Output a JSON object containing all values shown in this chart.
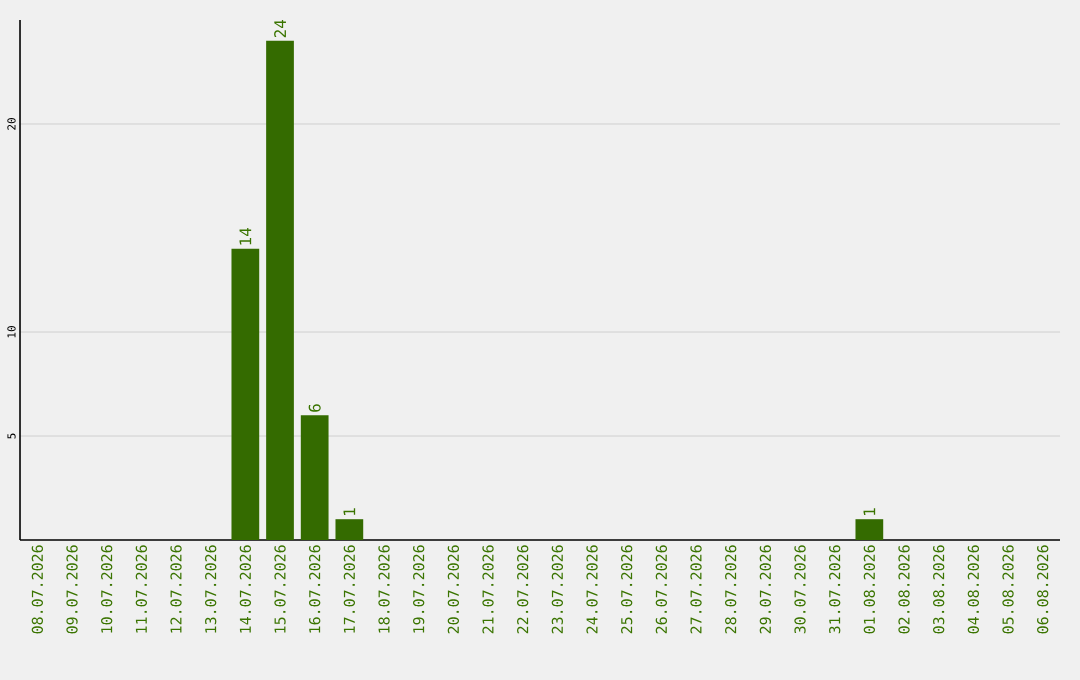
{
  "chart_data": {
    "type": "bar",
    "categories": [
      "08.07.2026",
      "09.07.2026",
      "10.07.2026",
      "11.07.2026",
      "12.07.2026",
      "13.07.2026",
      "14.07.2026",
      "15.07.2026",
      "16.07.2026",
      "17.07.2026",
      "18.07.2026",
      "19.07.2026",
      "20.07.2026",
      "21.07.2026",
      "22.07.2026",
      "23.07.2026",
      "24.07.2026",
      "25.07.2026",
      "26.07.2026",
      "27.07.2026",
      "28.07.2026",
      "29.07.2026",
      "30.07.2026",
      "31.07.2026",
      "01.08.2026",
      "02.08.2026",
      "03.08.2026",
      "04.08.2026",
      "05.08.2026",
      "06.08.2026"
    ],
    "values": [
      0,
      0,
      0,
      0,
      0,
      0,
      14,
      24,
      6,
      1,
      0,
      0,
      0,
      0,
      0,
      0,
      0,
      0,
      0,
      0,
      0,
      0,
      0,
      0,
      1,
      0,
      0,
      0,
      0,
      0
    ],
    "value_labels": [
      null,
      null,
      null,
      null,
      null,
      null,
      "14",
      "24",
      "6",
      "1",
      null,
      null,
      null,
      null,
      null,
      null,
      null,
      null,
      null,
      null,
      null,
      null,
      null,
      null,
      "1",
      null,
      null,
      null,
      null,
      null
    ],
    "color": "#346b00",
    "ylim": [
      0,
      25
    ],
    "yticks": [
      5,
      10,
      20
    ],
    "grid": "y"
  }
}
